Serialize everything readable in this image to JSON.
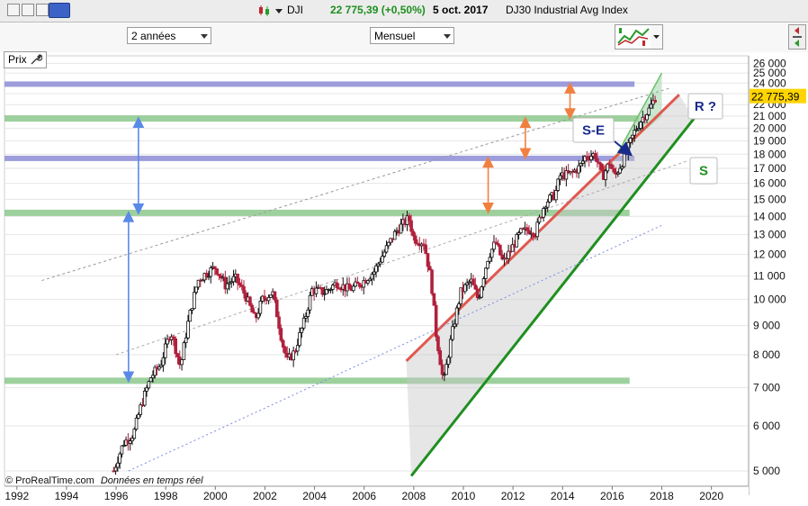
{
  "ticker": {
    "symbol": "DJI",
    "price_change": "22 775,39 (+0,50%)",
    "date": "5 oct. 2017",
    "name": "DJ30 Industrial Avg Index"
  },
  "toolbar": {
    "period_label": "2 années",
    "interval_label": "Mensuel",
    "prix_label": "Prix"
  },
  "footer": {
    "copyright": "© ProRealTime.com",
    "realtime_note": "Données en temps réel"
  },
  "colors": {
    "support_green": "#8cc88c",
    "resistance_purple": "#8c8cd6",
    "red_trend": "#e0584f",
    "green_trend": "#1f8f1f",
    "up_candle": "#111111",
    "down_candle": "#b0203c",
    "price_tag": "#ffd400",
    "blue_arrow": "#5a8ae8",
    "orange_arrow": "#f08040"
  },
  "chart_data": {
    "type": "candlestick",
    "symbol": "DJI",
    "interval": "Mensuel",
    "xlim": [
      1991.5,
      2021.5
    ],
    "ylim": [
      4700,
      26800
    ],
    "x_ticks": [
      "1992",
      "1994",
      "1996",
      "1998",
      "2000",
      "2002",
      "2004",
      "2006",
      "2008",
      "2010",
      "2012",
      "2014",
      "2016",
      "2018",
      "2020"
    ],
    "y_ticks": [
      "5 000",
      "6 000",
      "7 000",
      "8 000",
      "9 000",
      "10 000",
      "11 000",
      "12 000",
      "13 000",
      "14 000",
      "15 000",
      "16 000",
      "17 000",
      "18 000",
      "19 000",
      "20 000",
      "21 000",
      "22 000",
      "23 000",
      "24 000",
      "25 000",
      "26 000"
    ],
    "last_price": "22 775,39",
    "closes": [
      [
        1995.9,
        5000
      ],
      [
        1996.3,
        5600
      ],
      [
        1996.7,
        5800
      ],
      [
        1997.0,
        6500
      ],
      [
        1997.4,
        7300
      ],
      [
        1997.8,
        7700
      ],
      [
        1998.2,
        8800
      ],
      [
        1998.6,
        7600
      ],
      [
        1998.9,
        9100
      ],
      [
        1999.3,
        10800
      ],
      [
        1999.6,
        11100
      ],
      [
        2000.0,
        11400
      ],
      [
        2000.4,
        10600
      ],
      [
        2000.8,
        10900
      ],
      [
        2001.2,
        10200
      ],
      [
        2001.6,
        9200
      ],
      [
        2001.9,
        10000
      ],
      [
        2002.3,
        10300
      ],
      [
        2002.7,
        8400
      ],
      [
        2002.9,
        7800
      ],
      [
        2003.2,
        8100
      ],
      [
        2003.6,
        9200
      ],
      [
        2003.9,
        10400
      ],
      [
        2004.4,
        10300
      ],
      [
        2004.9,
        10700
      ],
      [
        2005.4,
        10400
      ],
      [
        2005.9,
        10700
      ],
      [
        2006.4,
        11200
      ],
      [
        2006.9,
        12300
      ],
      [
        2007.3,
        13200
      ],
      [
        2007.8,
        13900
      ],
      [
        2008.0,
        12800
      ],
      [
        2008.4,
        12600
      ],
      [
        2008.7,
        10800
      ],
      [
        2008.9,
        8700
      ],
      [
        2009.2,
        7100
      ],
      [
        2009.5,
        8500
      ],
      [
        2009.9,
        10300
      ],
      [
        2010.3,
        10800
      ],
      [
        2010.6,
        10000
      ],
      [
        2011.0,
        11900
      ],
      [
        2011.3,
        12600
      ],
      [
        2011.6,
        11600
      ],
      [
        2011.9,
        12200
      ],
      [
        2012.3,
        13100
      ],
      [
        2012.7,
        13300
      ],
      [
        2012.9,
        13100
      ],
      [
        2013.3,
        14800
      ],
      [
        2013.7,
        15300
      ],
      [
        2013.9,
        16500
      ],
      [
        2014.3,
        16600
      ],
      [
        2014.7,
        17100
      ],
      [
        2014.9,
        17800
      ],
      [
        2015.3,
        18000
      ],
      [
        2015.6,
        16400
      ],
      [
        2015.9,
        17400
      ],
      [
        2016.1,
        16400
      ],
      [
        2016.5,
        17800
      ],
      [
        2016.9,
        19700
      ],
      [
        2017.2,
        20800
      ],
      [
        2017.5,
        21600
      ],
      [
        2017.76,
        22775
      ]
    ],
    "annotations": [
      {
        "label": "S",
        "color": "#1f8f1f"
      },
      {
        "label": "R ?",
        "color": "#1a2a8c"
      },
      {
        "label": "S-E",
        "color": "#1a2a8c"
      }
    ],
    "support_zones": [
      {
        "y": 7200,
        "x1": 1991.5,
        "x2": 2016.7,
        "color": "support_green"
      },
      {
        "y": 14200,
        "x1": 1991.5,
        "x2": 2016.7,
        "color": "support_green"
      },
      {
        "y": 20800,
        "x1": 1991.5,
        "x2": 2017.1,
        "color": "support_green"
      }
    ],
    "resistance_zones": [
      {
        "y": 17700,
        "x1": 1991.5,
        "x2": 2016.9,
        "color": "resistance_purple"
      },
      {
        "y": 23900,
        "x1": 1991.5,
        "x2": 2016.9,
        "color": "resistance_purple"
      }
    ],
    "trendlines": [
      {
        "kind": "red",
        "from": [
          2007.7,
          7800
        ],
        "to": [
          2018.7,
          22900
        ]
      },
      {
        "kind": "green",
        "from": [
          2007.9,
          4900
        ],
        "to": [
          2019.3,
          20800
        ]
      },
      {
        "kind": "green_light",
        "from": [
          2016.2,
          18000
        ],
        "to": [
          2018.0,
          25000
        ]
      },
      {
        "kind": "dashed_upper",
        "from": [
          1993.0,
          10800
        ],
        "to": [
          2018.3,
          23500
        ]
      },
      {
        "kind": "dashed_mid",
        "from": [
          1996.0,
          8000
        ],
        "to": [
          2019.0,
          17500
        ]
      },
      {
        "kind": "dashed_low",
        "from": [
          1996.5,
          5000
        ],
        "to": [
          2018.0,
          13500
        ]
      }
    ],
    "arrows": [
      {
        "color": "blue_arrow",
        "x": 1996.5,
        "y1": 7200,
        "y2": 14200
      },
      {
        "color": "blue_arrow",
        "x": 1996.9,
        "y1": 14200,
        "y2": 20800
      },
      {
        "color": "orange_arrow",
        "x": 2011.0,
        "y1": 14200,
        "y2": 17700
      },
      {
        "color": "orange_arrow",
        "x": 2012.5,
        "y1": 17700,
        "y2": 20800
      },
      {
        "color": "orange_arrow",
        "x": 2014.3,
        "y1": 20800,
        "y2": 23900
      }
    ]
  }
}
